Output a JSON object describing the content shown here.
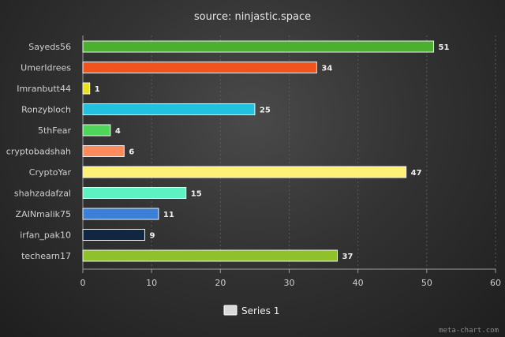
{
  "chart_data": {
    "type": "bar",
    "orientation": "horizontal",
    "title": "source: ninjastic.space",
    "categories": [
      "Sayeds56",
      "UmerIdrees",
      "Imranbutt44",
      "Ronzybloch",
      "5thFear",
      "cryptobadshah",
      "CryptoYar",
      "shahzadafzal",
      "ZAINmalik75",
      "irfan_pak10",
      "techearn17"
    ],
    "series": [
      {
        "name": "Series 1",
        "values": [
          51,
          34,
          1,
          25,
          4,
          6,
          47,
          15,
          11,
          9,
          37
        ]
      }
    ],
    "bar_colors": [
      "#4caf2f",
      "#f0541e",
      "#e8e01a",
      "#22c1e0",
      "#4fd65a",
      "#ff8a5c",
      "#fff176",
      "#5ef2c2",
      "#3a7fd8",
      "#0f2740",
      "#8fc22a"
    ],
    "xlim": [
      0,
      60
    ],
    "xticks": [
      0,
      10,
      20,
      30,
      40,
      50,
      60
    ],
    "grid": true,
    "legend_position": "bottom",
    "legend_swatch_color": "#d9d9d9",
    "credit": "meta-chart.com"
  }
}
